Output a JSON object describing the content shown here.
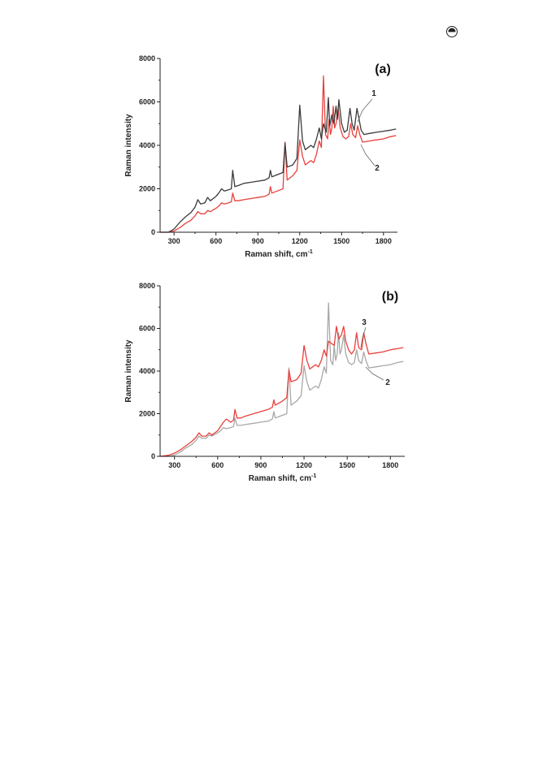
{
  "page": {
    "icon": "circled-symbol-icon"
  },
  "chart_data": [
    {
      "type": "line",
      "panel_label": "(a)",
      "xlabel": "Raman shift, cm",
      "xlabel_sup": "-1",
      "ylabel": "Raman intensity",
      "xlim": [
        200,
        1900
      ],
      "ylim": [
        0,
        8000
      ],
      "xticks": [
        300,
        600,
        900,
        1200,
        1500,
        1800
      ],
      "yticks": [
        0,
        2000,
        4000,
        6000,
        8000
      ],
      "grid": false,
      "series": [
        {
          "name": "1",
          "color": "#3a3a3a",
          "points": [
            [
              200,
              0
            ],
            [
              260,
              0
            ],
            [
              300,
              150
            ],
            [
              340,
              450
            ],
            [
              380,
              700
            ],
            [
              420,
              900
            ],
            [
              450,
              1150
            ],
            [
              470,
              1500
            ],
            [
              490,
              1300
            ],
            [
              520,
              1350
            ],
            [
              540,
              1600
            ],
            [
              560,
              1450
            ],
            [
              600,
              1650
            ],
            [
              620,
              1800
            ],
            [
              640,
              2000
            ],
            [
              660,
              1900
            ],
            [
              690,
              1950
            ],
            [
              710,
              2000
            ],
            [
              720,
              2850
            ],
            [
              735,
              2100
            ],
            [
              760,
              2150
            ],
            [
              800,
              2250
            ],
            [
              850,
              2300
            ],
            [
              900,
              2350
            ],
            [
              950,
              2400
            ],
            [
              980,
              2500
            ],
            [
              990,
              2850
            ],
            [
              1000,
              2550
            ],
            [
              1040,
              2650
            ],
            [
              1080,
              2750
            ],
            [
              1095,
              4100
            ],
            [
              1110,
              3000
            ],
            [
              1150,
              3100
            ],
            [
              1180,
              3400
            ],
            [
              1200,
              5850
            ],
            [
              1220,
              4200
            ],
            [
              1240,
              3800
            ],
            [
              1260,
              3900
            ],
            [
              1280,
              4000
            ],
            [
              1300,
              3900
            ],
            [
              1320,
              4300
            ],
            [
              1340,
              4800
            ],
            [
              1355,
              4300
            ],
            [
              1370,
              5000
            ],
            [
              1390,
              4600
            ],
            [
              1405,
              6200
            ],
            [
              1415,
              4900
            ],
            [
              1430,
              5400
            ],
            [
              1445,
              5000
            ],
            [
              1460,
              5800
            ],
            [
              1470,
              5200
            ],
            [
              1480,
              6100
            ],
            [
              1500,
              5000
            ],
            [
              1520,
              4600
            ],
            [
              1540,
              4700
            ],
            [
              1560,
              5700
            ],
            [
              1575,
              5000
            ],
            [
              1590,
              4700
            ],
            [
              1610,
              5700
            ],
            [
              1625,
              5200
            ],
            [
              1640,
              4700
            ],
            [
              1660,
              4500
            ],
            [
              1700,
              4550
            ],
            [
              1750,
              4600
            ],
            [
              1800,
              4650
            ],
            [
              1850,
              4700
            ],
            [
              1890,
              4750
            ]
          ]
        },
        {
          "name": "2",
          "color": "#e8403c",
          "points": [
            [
              200,
              0
            ],
            [
              260,
              0
            ],
            [
              300,
              60
            ],
            [
              340,
              200
            ],
            [
              380,
              400
            ],
            [
              420,
              550
            ],
            [
              450,
              750
            ],
            [
              470,
              950
            ],
            [
              490,
              850
            ],
            [
              520,
              850
            ],
            [
              540,
              1000
            ],
            [
              560,
              950
            ],
            [
              600,
              1100
            ],
            [
              620,
              1200
            ],
            [
              640,
              1350
            ],
            [
              660,
              1300
            ],
            [
              690,
              1350
            ],
            [
              710,
              1400
            ],
            [
              720,
              1800
            ],
            [
              735,
              1450
            ],
            [
              760,
              1450
            ],
            [
              800,
              1500
            ],
            [
              850,
              1550
            ],
            [
              900,
              1600
            ],
            [
              950,
              1650
            ],
            [
              980,
              1750
            ],
            [
              990,
              2100
            ],
            [
              1000,
              1800
            ],
            [
              1040,
              1900
            ],
            [
              1080,
              2000
            ],
            [
              1095,
              4150
            ],
            [
              1110,
              2400
            ],
            [
              1150,
              2600
            ],
            [
              1180,
              2850
            ],
            [
              1200,
              4250
            ],
            [
              1220,
              3500
            ],
            [
              1240,
              3100
            ],
            [
              1260,
              3200
            ],
            [
              1280,
              3300
            ],
            [
              1300,
              3200
            ],
            [
              1320,
              3600
            ],
            [
              1340,
              4200
            ],
            [
              1355,
              3900
            ],
            [
              1370,
              7200
            ],
            [
              1385,
              4500
            ],
            [
              1400,
              4300
            ],
            [
              1410,
              5200
            ],
            [
              1420,
              4500
            ],
            [
              1430,
              4800
            ],
            [
              1440,
              5800
            ],
            [
              1450,
              4800
            ],
            [
              1460,
              5000
            ],
            [
              1475,
              5700
            ],
            [
              1490,
              4800
            ],
            [
              1510,
              4400
            ],
            [
              1530,
              4300
            ],
            [
              1550,
              4400
            ],
            [
              1565,
              5000
            ],
            [
              1580,
              4500
            ],
            [
              1600,
              4350
            ],
            [
              1615,
              4900
            ],
            [
              1630,
              4500
            ],
            [
              1650,
              4150
            ],
            [
              1700,
              4200
            ],
            [
              1750,
              4250
            ],
            [
              1800,
              4300
            ],
            [
              1850,
              4400
            ],
            [
              1890,
              4450
            ]
          ]
        }
      ],
      "annotations": [
        "1",
        "2"
      ]
    },
    {
      "type": "line",
      "panel_label": "(b)",
      "xlabel": "Raman shift, cm",
      "xlabel_sup": "-1",
      "ylabel": "Raman intensity",
      "xlim": [
        200,
        1900
      ],
      "ylim": [
        0,
        8000
      ],
      "xticks": [
        300,
        600,
        900,
        1200,
        1500,
        1800
      ],
      "yticks": [
        0,
        2000,
        4000,
        6000,
        8000
      ],
      "grid": false,
      "series": [
        {
          "name": "3",
          "color": "#e8403c",
          "points": [
            [
              200,
              0
            ],
            [
              260,
              50
            ],
            [
              300,
              150
            ],
            [
              340,
              300
            ],
            [
              380,
              500
            ],
            [
              420,
              700
            ],
            [
              450,
              900
            ],
            [
              470,
              1100
            ],
            [
              490,
              950
            ],
            [
              520,
              950
            ],
            [
              540,
              1100
            ],
            [
              560,
              1000
            ],
            [
              600,
              1200
            ],
            [
              620,
              1400
            ],
            [
              640,
              1600
            ],
            [
              660,
              1750
            ],
            [
              690,
              1600
            ],
            [
              710,
              1700
            ],
            [
              720,
              2200
            ],
            [
              735,
              1800
            ],
            [
              760,
              1800
            ],
            [
              800,
              1900
            ],
            [
              850,
              2000
            ],
            [
              900,
              2100
            ],
            [
              950,
              2200
            ],
            [
              980,
              2300
            ],
            [
              990,
              2650
            ],
            [
              1000,
              2400
            ],
            [
              1040,
              2550
            ],
            [
              1080,
              2750
            ],
            [
              1095,
              4050
            ],
            [
              1110,
              3500
            ],
            [
              1150,
              3600
            ],
            [
              1180,
              3900
            ],
            [
              1200,
              5200
            ],
            [
              1220,
              4500
            ],
            [
              1240,
              4100
            ],
            [
              1260,
              4200
            ],
            [
              1280,
              4300
            ],
            [
              1300,
              4200
            ],
            [
              1320,
              4500
            ],
            [
              1340,
              5000
            ],
            [
              1355,
              4700
            ],
            [
              1370,
              5400
            ],
            [
              1390,
              5300
            ],
            [
              1410,
              5200
            ],
            [
              1425,
              6100
            ],
            [
              1440,
              5500
            ],
            [
              1460,
              5700
            ],
            [
              1475,
              6100
            ],
            [
              1490,
              5400
            ],
            [
              1510,
              5000
            ],
            [
              1530,
              4800
            ],
            [
              1550,
              5000
            ],
            [
              1565,
              5800
            ],
            [
              1580,
              5100
            ],
            [
              1600,
              5000
            ],
            [
              1615,
              5800
            ],
            [
              1630,
              5300
            ],
            [
              1650,
              4800
            ],
            [
              1700,
              4850
            ],
            [
              1750,
              4900
            ],
            [
              1800,
              5000
            ],
            [
              1850,
              5050
            ],
            [
              1890,
              5100
            ]
          ]
        },
        {
          "name": "2",
          "color": "#a8a8a8",
          "points": [
            [
              200,
              0
            ],
            [
              260,
              0
            ],
            [
              300,
              60
            ],
            [
              340,
              200
            ],
            [
              380,
              400
            ],
            [
              420,
              550
            ],
            [
              450,
              750
            ],
            [
              470,
              950
            ],
            [
              490,
              850
            ],
            [
              520,
              850
            ],
            [
              540,
              1000
            ],
            [
              560,
              950
            ],
            [
              600,
              1100
            ],
            [
              620,
              1200
            ],
            [
              640,
              1350
            ],
            [
              660,
              1300
            ],
            [
              690,
              1350
            ],
            [
              710,
              1400
            ],
            [
              720,
              1800
            ],
            [
              735,
              1450
            ],
            [
              760,
              1450
            ],
            [
              800,
              1500
            ],
            [
              850,
              1550
            ],
            [
              900,
              1600
            ],
            [
              950,
              1650
            ],
            [
              980,
              1750
            ],
            [
              990,
              2100
            ],
            [
              1000,
              1800
            ],
            [
              1040,
              1900
            ],
            [
              1080,
              2000
            ],
            [
              1095,
              4150
            ],
            [
              1110,
              2400
            ],
            [
              1150,
              2600
            ],
            [
              1180,
              2850
            ],
            [
              1200,
              4250
            ],
            [
              1220,
              3500
            ],
            [
              1240,
              3100
            ],
            [
              1260,
              3200
            ],
            [
              1280,
              3300
            ],
            [
              1300,
              3200
            ],
            [
              1320,
              3600
            ],
            [
              1340,
              4200
            ],
            [
              1355,
              3900
            ],
            [
              1370,
              7200
            ],
            [
              1385,
              4500
            ],
            [
              1400,
              4300
            ],
            [
              1410,
              5200
            ],
            [
              1420,
              4500
            ],
            [
              1430,
              4800
            ],
            [
              1440,
              5800
            ],
            [
              1450,
              4800
            ],
            [
              1460,
              5000
            ],
            [
              1475,
              5700
            ],
            [
              1490,
              4800
            ],
            [
              1510,
              4400
            ],
            [
              1530,
              4300
            ],
            [
              1550,
              4400
            ],
            [
              1565,
              5000
            ],
            [
              1580,
              4500
            ],
            [
              1600,
              4350
            ],
            [
              1615,
              4900
            ],
            [
              1630,
              4500
            ],
            [
              1650,
              4150
            ],
            [
              1700,
              4200
            ],
            [
              1750,
              4250
            ],
            [
              1800,
              4300
            ],
            [
              1850,
              4400
            ],
            [
              1890,
              4450
            ]
          ]
        }
      ],
      "annotations": [
        "3",
        "2"
      ]
    }
  ]
}
